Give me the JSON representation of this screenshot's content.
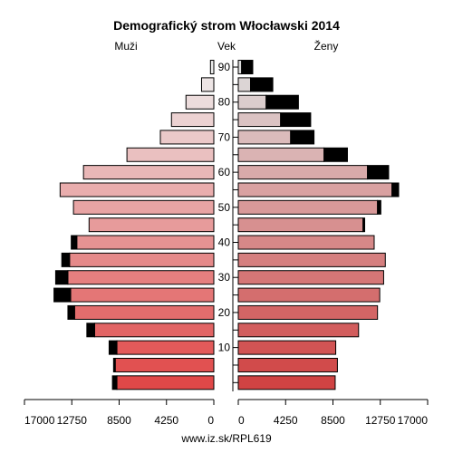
{
  "chart_data": {
    "type": "bar",
    "title": "Demografický strom Włocławski 2014",
    "left_label": "Muži",
    "center_label": "Vek",
    "right_label": "Ženy",
    "footer": "www.iz.sk/RPL619",
    "xlim": [
      0,
      17000
    ],
    "x_ticks_left": [
      "17000",
      "12750",
      "8500",
      "4250",
      "0"
    ],
    "x_ticks_right": [
      "0",
      "4250",
      "8500",
      "12750",
      "17000"
    ],
    "age_ticks": [
      "10",
      "20",
      "30",
      "40",
      "50",
      "60",
      "70",
      "80",
      "90"
    ],
    "age_groups": [
      "0-4",
      "5-9",
      "10-14",
      "15-19",
      "20-24",
      "25-29",
      "30-34",
      "35-39",
      "40-44",
      "45-49",
      "50-54",
      "55-59",
      "60-64",
      "65-69",
      "70-74",
      "75-79",
      "80-84",
      "85-89",
      "90+"
    ],
    "men": [
      8700,
      8850,
      8700,
      10700,
      12500,
      12850,
      13100,
      12950,
      12300,
      11200,
      12600,
      13800,
      11700,
      7800,
      4800,
      3800,
      2500,
      1100,
      300
    ],
    "men_surplus": [
      400,
      150,
      700,
      700,
      600,
      1500,
      1100,
      700,
      500,
      0,
      0,
      0,
      0,
      0,
      0,
      0,
      0,
      0,
      0
    ],
    "women": [
      8700,
      8900,
      8750,
      10800,
      12500,
      12700,
      13050,
      13200,
      12200,
      11200,
      12500,
      13800,
      11600,
      7700,
      4700,
      3800,
      2500,
      1100,
      300
    ],
    "women_surplus": [
      0,
      0,
      0,
      0,
      0,
      0,
      0,
      0,
      0,
      150,
      300,
      600,
      1900,
      2100,
      2100,
      2700,
      2900,
      2000,
      1000
    ],
    "colors": {
      "low_age": "#e04848",
      "high_age": "#eeeeee",
      "surplus": "#000000"
    }
  }
}
